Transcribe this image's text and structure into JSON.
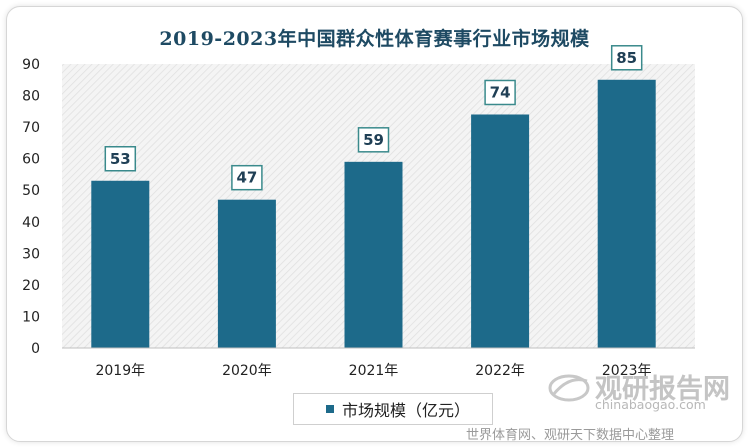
{
  "chart_data": {
    "type": "bar",
    "title": "2019-2023年中国群众性体育赛事行业市场规模",
    "categories": [
      "2019年",
      "2020年",
      "2021年",
      "2022年",
      "2023年"
    ],
    "series": [
      {
        "name": "市场规模（亿元）",
        "values": [
          53,
          47,
          59,
          74,
          85
        ]
      }
    ],
    "data_labels": [
      "53",
      "47",
      "59",
      "74",
      "85"
    ],
    "ylim": [
      0,
      90
    ],
    "yticks": [
      0,
      10,
      20,
      30,
      40,
      50,
      60,
      70,
      80,
      90
    ],
    "grid": false,
    "legend_position": "bottom",
    "bar_color": "#1d6a8a",
    "plot_background": "hatched light gray"
  },
  "watermark": {
    "name": "观研报告网",
    "url": "chinabaogao.com"
  },
  "source_note": "世界体育网、观研天下数据中心整理"
}
